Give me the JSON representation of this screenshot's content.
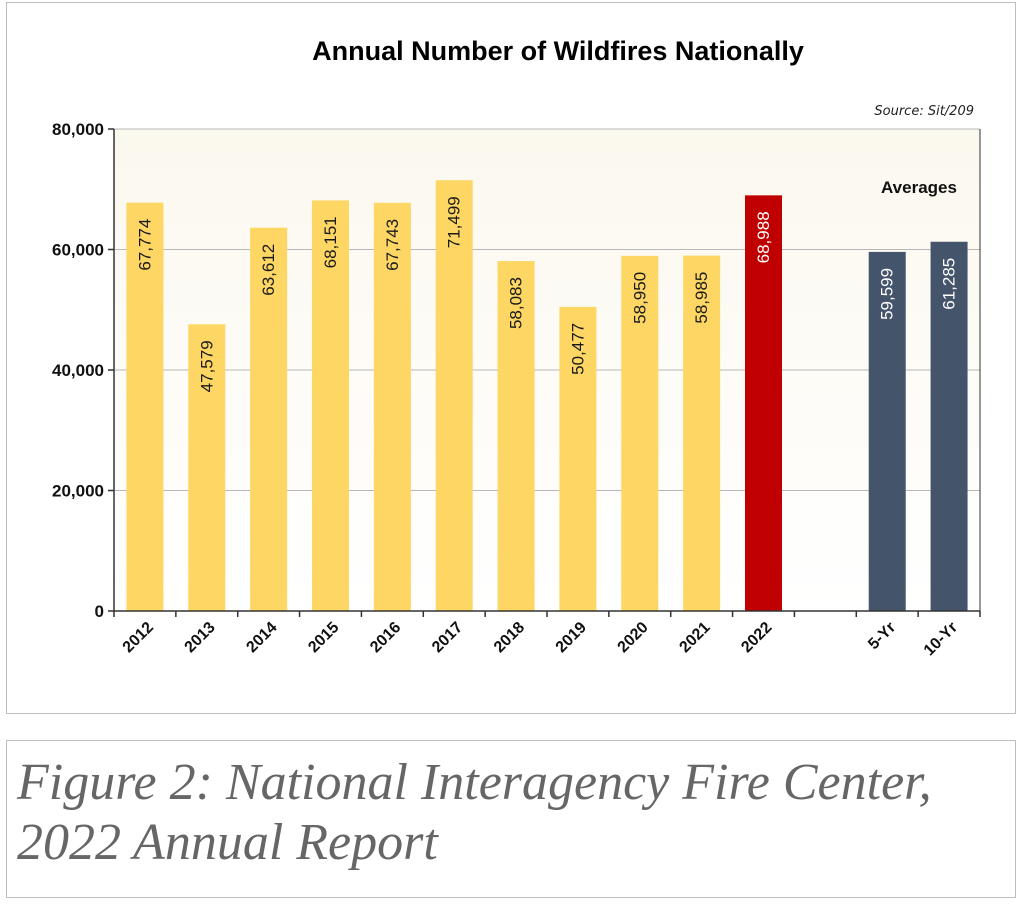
{
  "chart_data": {
    "type": "bar",
    "title": "Annual Number of Wildfires Nationally",
    "source": "Source: Sit/209",
    "annotation": "Averages",
    "ylim": [
      0,
      80000
    ],
    "yticks": [
      0,
      20000,
      40000,
      60000,
      80000
    ],
    "ytick_labels": [
      "0",
      "20,000",
      "40,000",
      "60,000",
      "80,000"
    ],
    "grid": "horizontal",
    "categories": [
      "2012",
      "2013",
      "2014",
      "2015",
      "2016",
      "2017",
      "2018",
      "2019",
      "2020",
      "2021",
      "2022",
      "5-Yr",
      "10-Yr"
    ],
    "values": [
      67774,
      47579,
      63612,
      68151,
      67743,
      71499,
      58083,
      50477,
      58950,
      58985,
      68988,
      59599,
      61285
    ],
    "value_labels": [
      "67,774",
      "47,579",
      "63,612",
      "68,151",
      "67,743",
      "71,499",
      "58,083",
      "50,477",
      "58,950",
      "58,985",
      "68,988",
      "59,599",
      "61,285"
    ],
    "colors": {
      "annual": "#FDD663",
      "current_year": "#C00000",
      "averages": "#44546A",
      "label_dark": "#1a1a1a",
      "label_light": "#ffffff"
    }
  },
  "caption": "Figure 2: National Interagency Fire Center, 2022 Annual Report"
}
